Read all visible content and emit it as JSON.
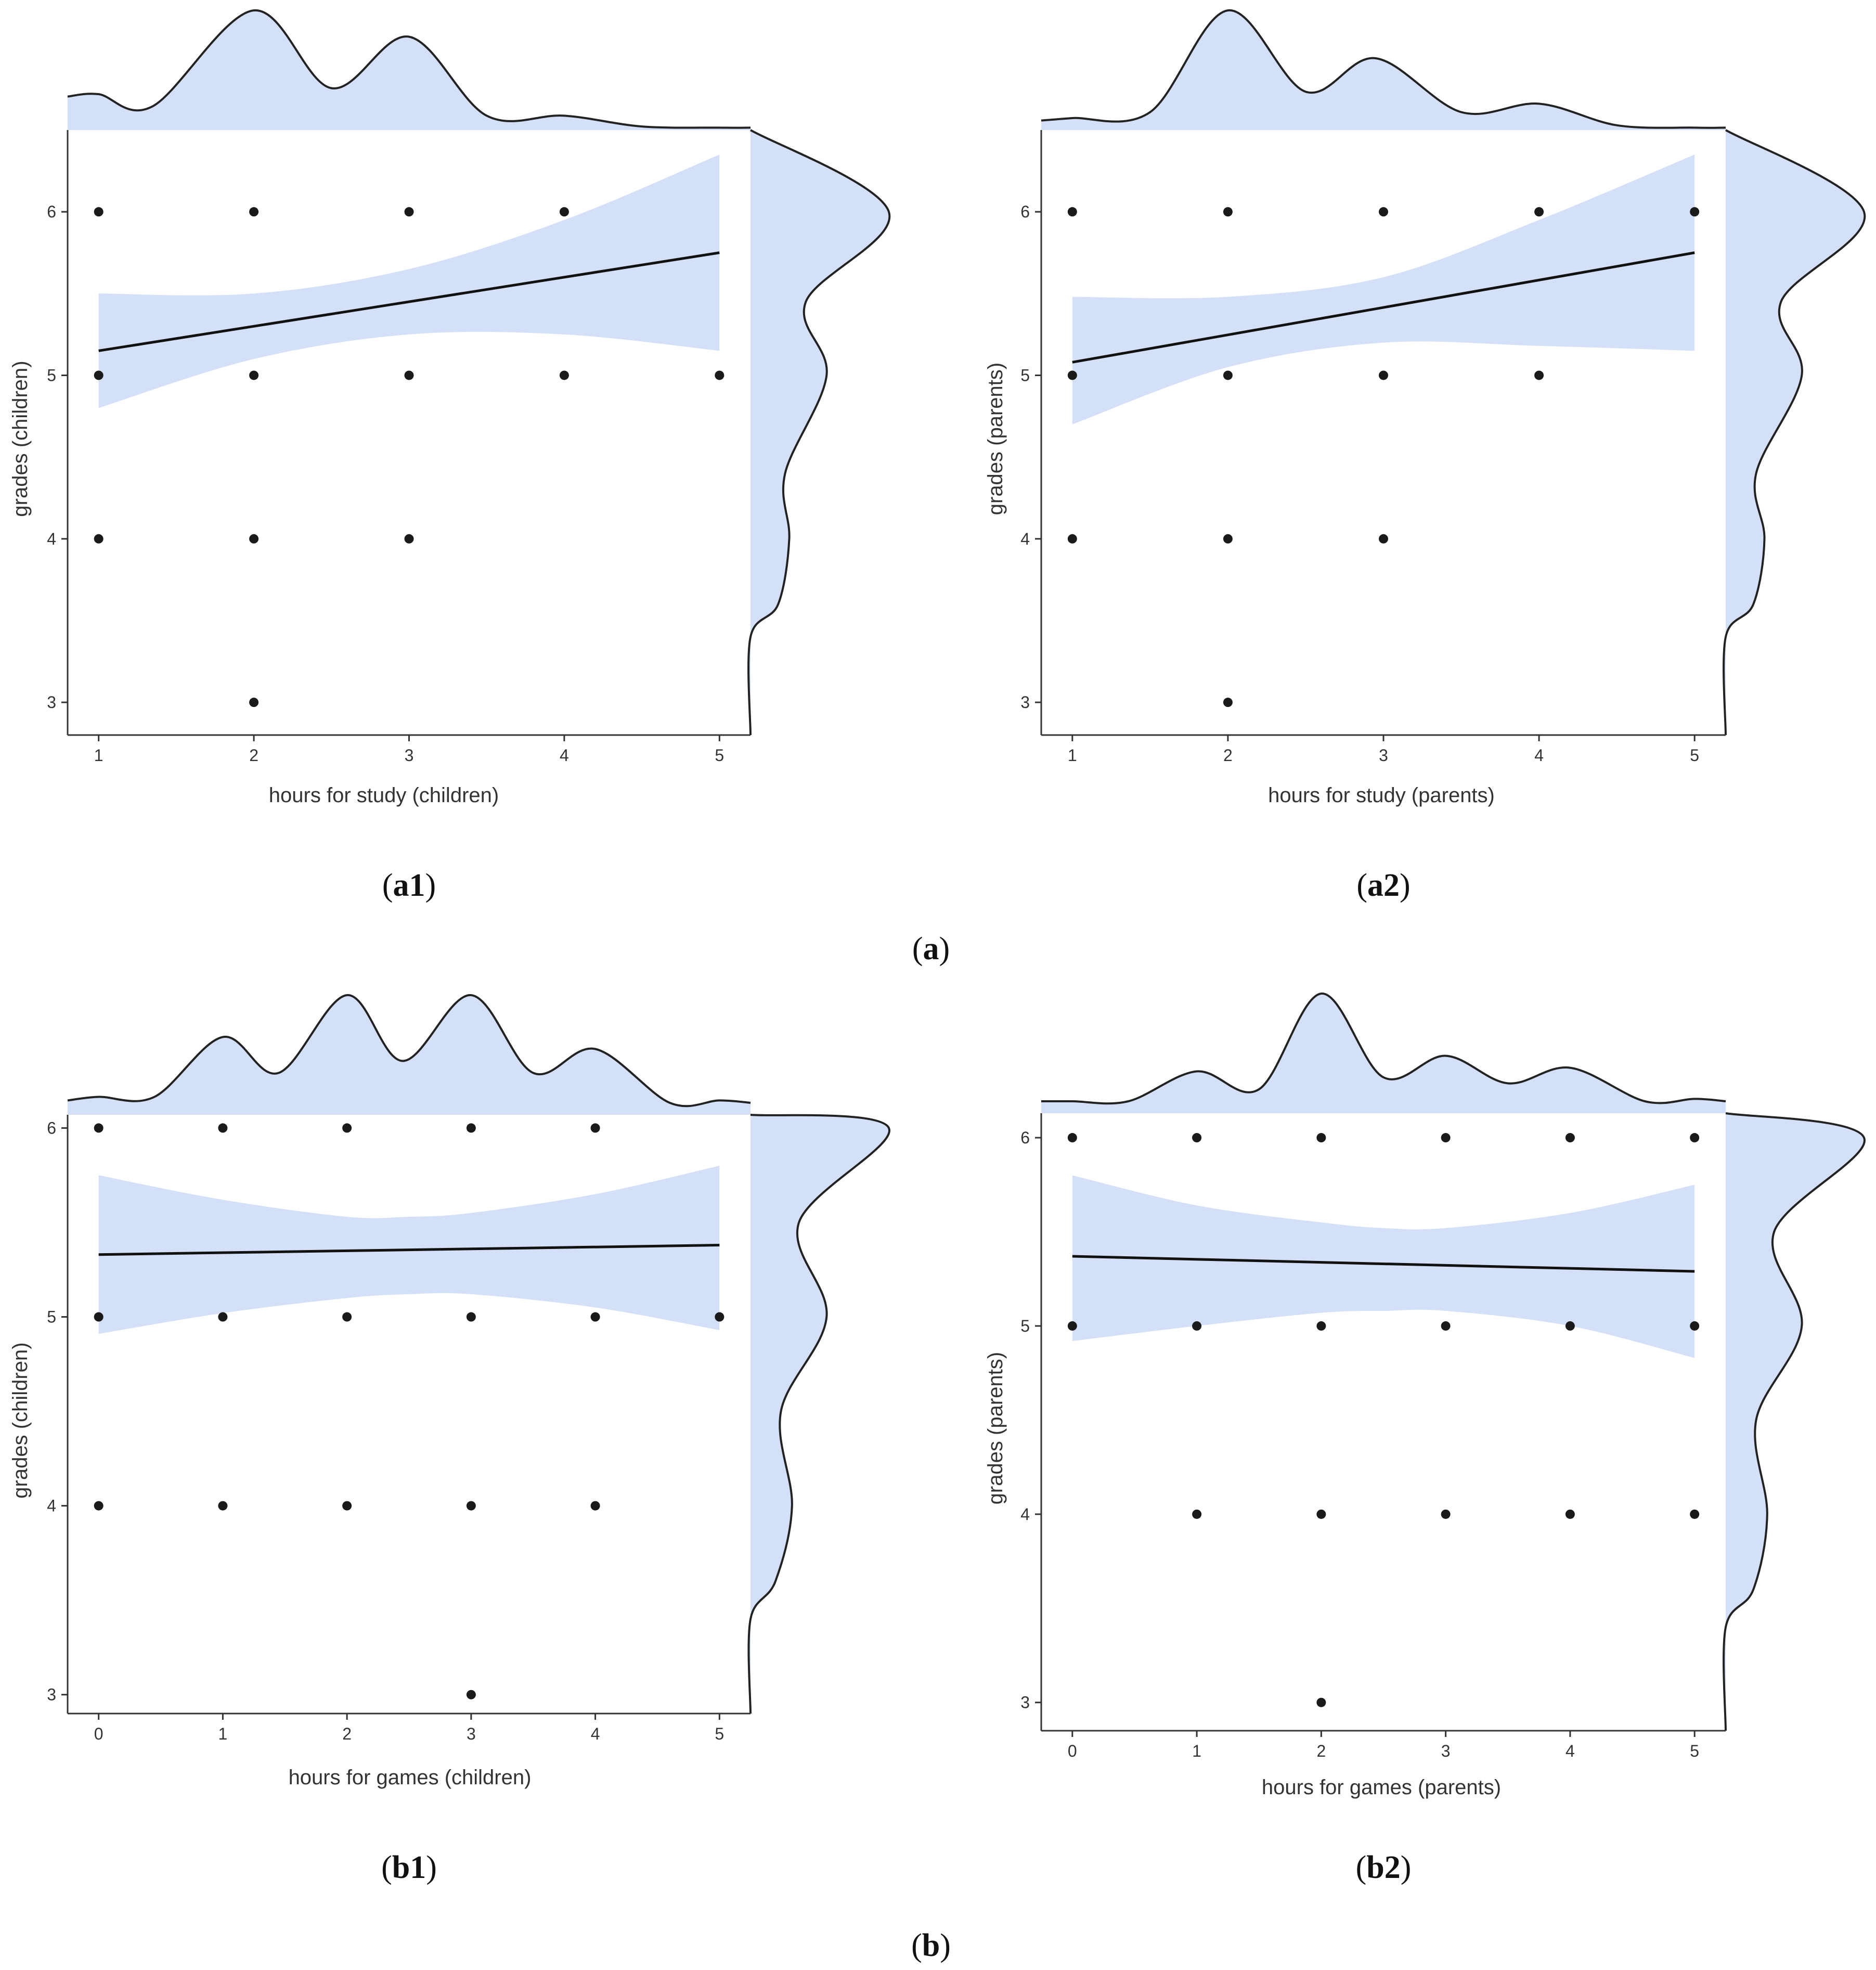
{
  "colors": {
    "fill": "#d3e0f7",
    "line": "#111111",
    "point": "#1a1a1a",
    "axis": "#333333"
  },
  "group_labels": [
    {
      "id": "a",
      "open": "(",
      "letter": "a",
      "close": ")"
    },
    {
      "id": "b",
      "open": "(",
      "letter": "b",
      "close": ")"
    }
  ],
  "chart_data": [
    {
      "id": "a1",
      "type": "scatter",
      "panel_label": {
        "open": "(",
        "letter": "a1",
        "close": ")"
      },
      "xlabel": "hours for study (children)",
      "ylabel": "grades (children)",
      "xlim": [
        0.8,
        5.2
      ],
      "ylim": [
        2.8,
        6.5
      ],
      "xticks": [
        1,
        2,
        3,
        4,
        5
      ],
      "yticks": [
        3,
        4,
        5,
        6
      ],
      "points": [
        [
          1,
          6
        ],
        [
          2,
          6
        ],
        [
          3,
          6
        ],
        [
          4,
          6
        ],
        [
          1,
          5
        ],
        [
          2,
          5
        ],
        [
          3,
          5
        ],
        [
          4,
          5
        ],
        [
          5,
          5
        ],
        [
          1,
          4
        ],
        [
          2,
          4
        ],
        [
          3,
          4
        ],
        [
          2,
          3
        ]
      ],
      "fit": {
        "x": [
          1,
          5
        ],
        "y": [
          5.15,
          5.75
        ]
      },
      "ci": {
        "x": [
          1,
          2,
          3,
          4,
          5
        ],
        "upper": [
          5.5,
          5.5,
          5.65,
          5.95,
          6.35
        ],
        "lower": [
          4.8,
          5.1,
          5.25,
          5.25,
          5.15
        ]
      },
      "density_x": {
        "x": [
          0.8,
          1.0,
          1.35,
          2.0,
          2.5,
          3.0,
          3.5,
          4.0,
          4.5,
          5.0,
          5.2
        ],
        "d": [
          0.28,
          0.3,
          0.2,
          1.0,
          0.35,
          0.78,
          0.12,
          0.12,
          0.03,
          0.02,
          0.02
        ]
      },
      "density_y": {
        "y": [
          2.8,
          3.4,
          3.6,
          4.0,
          4.4,
          5.0,
          5.45,
          6.0,
          6.5
        ],
        "d": [
          0.0,
          0.0,
          0.2,
          0.28,
          0.25,
          0.55,
          0.4,
          1.0,
          0.0
        ]
      }
    },
    {
      "id": "a2",
      "type": "scatter",
      "panel_label": {
        "open": "(",
        "letter": "a2",
        "close": ")"
      },
      "xlabel": "hours for study (parents)",
      "ylabel": "grades (parents)",
      "xlim": [
        0.8,
        5.2
      ],
      "ylim": [
        2.8,
        6.5
      ],
      "xticks": [
        1,
        2,
        3,
        4,
        5
      ],
      "yticks": [
        3,
        4,
        5,
        6
      ],
      "points": [
        [
          1,
          6
        ],
        [
          2,
          6
        ],
        [
          3,
          6
        ],
        [
          4,
          6
        ],
        [
          5,
          6
        ],
        [
          1,
          5
        ],
        [
          2,
          5
        ],
        [
          3,
          5
        ],
        [
          4,
          5
        ],
        [
          1,
          4
        ],
        [
          2,
          4
        ],
        [
          3,
          4
        ],
        [
          2,
          3
        ]
      ],
      "fit": {
        "x": [
          1,
          5
        ],
        "y": [
          5.08,
          5.75
        ]
      },
      "ci": {
        "x": [
          1,
          2,
          3,
          4,
          5
        ],
        "upper": [
          5.48,
          5.48,
          5.6,
          5.95,
          6.35
        ],
        "lower": [
          4.7,
          5.05,
          5.2,
          5.18,
          5.15
        ]
      },
      "density_x": {
        "x": [
          0.8,
          1.0,
          1.5,
          2.0,
          2.5,
          2.95,
          3.5,
          4.0,
          4.5,
          5.0,
          5.2
        ],
        "d": [
          0.08,
          0.1,
          0.15,
          1.0,
          0.32,
          0.6,
          0.15,
          0.22,
          0.04,
          0.02,
          0.02
        ]
      },
      "density_y": {
        "y": [
          2.8,
          3.4,
          3.6,
          4.0,
          4.4,
          5.0,
          5.45,
          6.0,
          6.5
        ],
        "d": [
          0.0,
          0.0,
          0.2,
          0.28,
          0.22,
          0.55,
          0.4,
          1.0,
          0.0
        ]
      }
    },
    {
      "id": "b1",
      "type": "scatter",
      "panel_label": {
        "open": "(",
        "letter": "b1",
        "close": ")"
      },
      "xlabel": "hours for games (children)",
      "ylabel": "grades (children)",
      "xlim": [
        -0.25,
        5.25
      ],
      "ylim": [
        2.9,
        6.07
      ],
      "xticks": [
        0,
        1,
        2,
        3,
        4,
        5
      ],
      "yticks": [
        3,
        4,
        5,
        6
      ],
      "points": [
        [
          0,
          6
        ],
        [
          1,
          6
        ],
        [
          2,
          6
        ],
        [
          3,
          6
        ],
        [
          4,
          6
        ],
        [
          0,
          5
        ],
        [
          1,
          5
        ],
        [
          2,
          5
        ],
        [
          3,
          5
        ],
        [
          4,
          5
        ],
        [
          5,
          5
        ],
        [
          0,
          4
        ],
        [
          1,
          4
        ],
        [
          2,
          4
        ],
        [
          3,
          4
        ],
        [
          4,
          4
        ],
        [
          3,
          3
        ]
      ],
      "fit": {
        "x": [
          0,
          5
        ],
        "y": [
          5.33,
          5.38
        ]
      },
      "ci": {
        "x": [
          0,
          1,
          2,
          2.5,
          3,
          4,
          5
        ],
        "upper": [
          5.75,
          5.62,
          5.53,
          5.53,
          5.55,
          5.65,
          5.8
        ],
        "lower": [
          4.91,
          5.02,
          5.1,
          5.12,
          5.12,
          5.05,
          4.93
        ]
      },
      "density_x": {
        "x": [
          -0.25,
          0.0,
          0.45,
          1.0,
          1.45,
          2.0,
          2.45,
          3.0,
          3.5,
          4.0,
          4.6,
          5.0,
          5.25
        ],
        "d": [
          0.12,
          0.15,
          0.15,
          0.65,
          0.35,
          1.0,
          0.45,
          1.0,
          0.35,
          0.55,
          0.1,
          0.12,
          0.1
        ]
      },
      "density_y": {
        "y": [
          2.9,
          3.4,
          3.6,
          4.0,
          4.5,
          5.0,
          5.5,
          6.0,
          6.07
        ],
        "d": [
          0.0,
          0.0,
          0.18,
          0.3,
          0.22,
          0.55,
          0.35,
          1.0,
          0.0
        ]
      }
    },
    {
      "id": "b2",
      "type": "scatter",
      "panel_label": {
        "open": "(",
        "letter": "b2",
        "close": ")"
      },
      "xlabel": "hours for games (parents)",
      "ylabel": "grades (parents)",
      "xlim": [
        -0.25,
        5.25
      ],
      "ylim": [
        2.85,
        6.13
      ],
      "xticks": [
        0,
        1,
        2,
        3,
        4,
        5
      ],
      "yticks": [
        3,
        4,
        5,
        6
      ],
      "points": [
        [
          0,
          6
        ],
        [
          1,
          6
        ],
        [
          2,
          6
        ],
        [
          3,
          6
        ],
        [
          4,
          6
        ],
        [
          5,
          6
        ],
        [
          0,
          5
        ],
        [
          1,
          5
        ],
        [
          2,
          5
        ],
        [
          3,
          5
        ],
        [
          4,
          5
        ],
        [
          5,
          5
        ],
        [
          1,
          4
        ],
        [
          2,
          4
        ],
        [
          3,
          4
        ],
        [
          4,
          4
        ],
        [
          5,
          4
        ],
        [
          2,
          3
        ]
      ],
      "fit": {
        "x": [
          0,
          5
        ],
        "y": [
          5.37,
          5.29
        ]
      },
      "ci": {
        "x": [
          0,
          1,
          2,
          2.5,
          3,
          4,
          5
        ],
        "upper": [
          5.8,
          5.64,
          5.55,
          5.52,
          5.52,
          5.6,
          5.75
        ],
        "lower": [
          4.92,
          5.0,
          5.07,
          5.08,
          5.08,
          5.0,
          4.83
        ]
      },
      "density_x": {
        "x": [
          -0.25,
          0.0,
          0.45,
          1.0,
          1.5,
          2.0,
          2.5,
          3.0,
          3.5,
          4.0,
          4.6,
          5.0,
          5.25
        ],
        "d": [
          0.1,
          0.1,
          0.1,
          0.35,
          0.2,
          1.0,
          0.3,
          0.48,
          0.25,
          0.38,
          0.1,
          0.12,
          0.1
        ]
      },
      "density_y": {
        "y": [
          2.85,
          3.4,
          3.6,
          4.0,
          4.5,
          5.0,
          5.5,
          6.0,
          6.13
        ],
        "d": [
          0.0,
          0.0,
          0.2,
          0.3,
          0.22,
          0.55,
          0.35,
          1.0,
          0.0
        ]
      }
    }
  ]
}
